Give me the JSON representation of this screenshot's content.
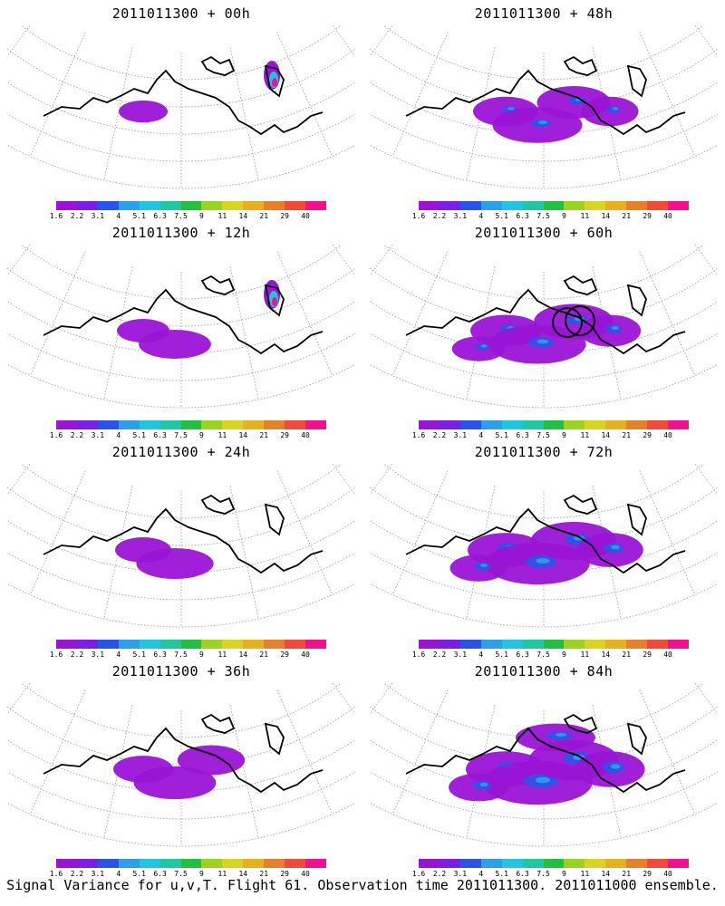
{
  "panels": [
    {
      "title": "2011011300 + 00h",
      "spread": 0.15,
      "hot": true
    },
    {
      "title": "2011011300 + 48h",
      "spread": 0.6,
      "hot": false
    },
    {
      "title": "2011011300 + 12h",
      "spread": 0.25,
      "hot": true
    },
    {
      "title": "2011011300 + 60h",
      "spread": 0.75,
      "hot": false,
      "circles": true
    },
    {
      "title": "2011011300 + 24h",
      "spread": 0.35,
      "hot": false
    },
    {
      "title": "2011011300 + 72h",
      "spread": 0.9,
      "hot": false
    },
    {
      "title": "2011011300 + 36h",
      "spread": 0.45,
      "hot": false
    },
    {
      "title": "2011011300 + 84h",
      "spread": 1.0,
      "hot": false
    }
  ],
  "colorbar": {
    "colors": [
      "#9a14d6",
      "#7a1fe6",
      "#2a54e8",
      "#2aa0e8",
      "#20c6e0",
      "#20c8a0",
      "#20c040",
      "#9ad420",
      "#d8d420",
      "#e6b020",
      "#e6802a",
      "#f04a3a",
      "#f01090"
    ],
    "labels": [
      "1.6",
      "2.2",
      "3.1",
      "4",
      "5.1",
      "6.3",
      "7.5",
      "9",
      "11",
      "14",
      "21",
      "29",
      "40"
    ]
  },
  "footer": "Signal Variance for u,v,T. Flight 61. Observation time 2011011300. 2011011000 ensemble."
}
